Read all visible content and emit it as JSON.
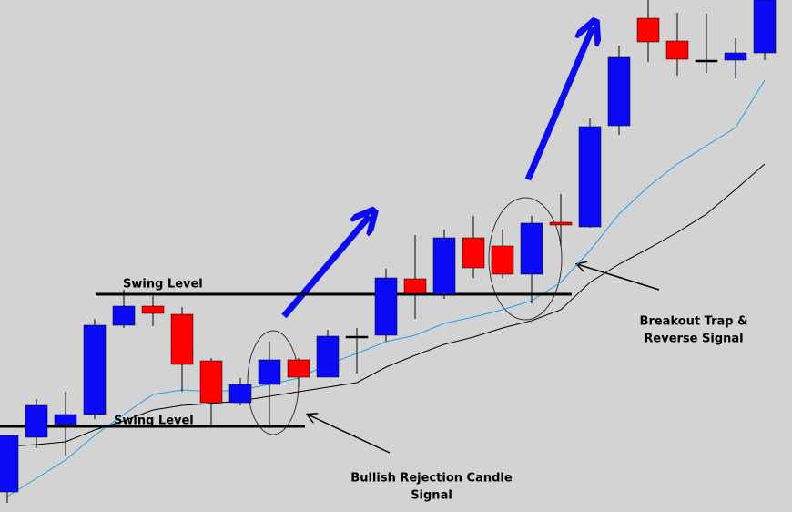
{
  "chart_data": {
    "type": "candlestick",
    "ylim": [
      0,
      562
    ],
    "up_color": "#0a0af5",
    "down_color": "#ff0000",
    "doji_color": "#000000",
    "open": [
      22,
      82,
      96,
      107,
      205,
      226,
      217,
      166,
      120,
      140,
      167,
      148,
      193,
      194,
      256,
      239,
      301,
      292,
      261,
      318,
      313,
      424,
      542,
      517,
      496,
      496,
      504
    ],
    "high": [
      84,
      124,
      132,
      212,
      244,
      237,
      225,
      169,
      147,
      187,
      169,
      200,
      202,
      267,
      304,
      310,
      325,
      310,
      325,
      349,
      432,
      512,
      562,
      548,
      547,
      520,
      562
    ],
    "low": [
      10,
      70,
      62,
      102,
      202,
      204,
      132,
      94,
      117,
      92,
      137,
      148,
      152,
      187,
      212,
      234,
      257,
      257,
      229,
      292,
      312,
      414,
      494,
      479,
      482,
      476,
      496
    ],
    "close": [
      84,
      117,
      107,
      205,
      226,
      218,
      162,
      120,
      140,
      167,
      148,
      193,
      193,
      257,
      240,
      301,
      268,
      261,
      317,
      315,
      423,
      499,
      516,
      497,
      496,
      504,
      562
    ],
    "lines": [
      {
        "color": "#1ea0e6",
        "values": [
          17,
          37,
          57,
          84,
          107,
          129,
          134,
          132,
          134,
          140,
          147,
          162,
          174,
          187,
          194,
          207,
          214,
          222,
          232,
          252,
          287,
          327,
          357,
          382,
          402,
          422,
          474
        ]
      },
      {
        "color": "#000000",
        "values": [
          72,
          74,
          77,
          90,
          100,
          112,
          117,
          119,
          122,
          127,
          132,
          137,
          142,
          159,
          172,
          184,
          192,
          202,
          210,
          222,
          252,
          272,
          289,
          307,
          327,
          354,
          382
        ]
      }
    ],
    "levels": [
      {
        "label": "Swing Level",
        "value": 239
      },
      {
        "label": "Swing Level",
        "value": 94
      }
    ],
    "annotations": [
      {
        "lines": [
          "Bullish Rejection Candle",
          "Signal"
        ]
      },
      {
        "lines": [
          "Breakout Trap &",
          "Reverse Signal"
        ]
      }
    ]
  }
}
